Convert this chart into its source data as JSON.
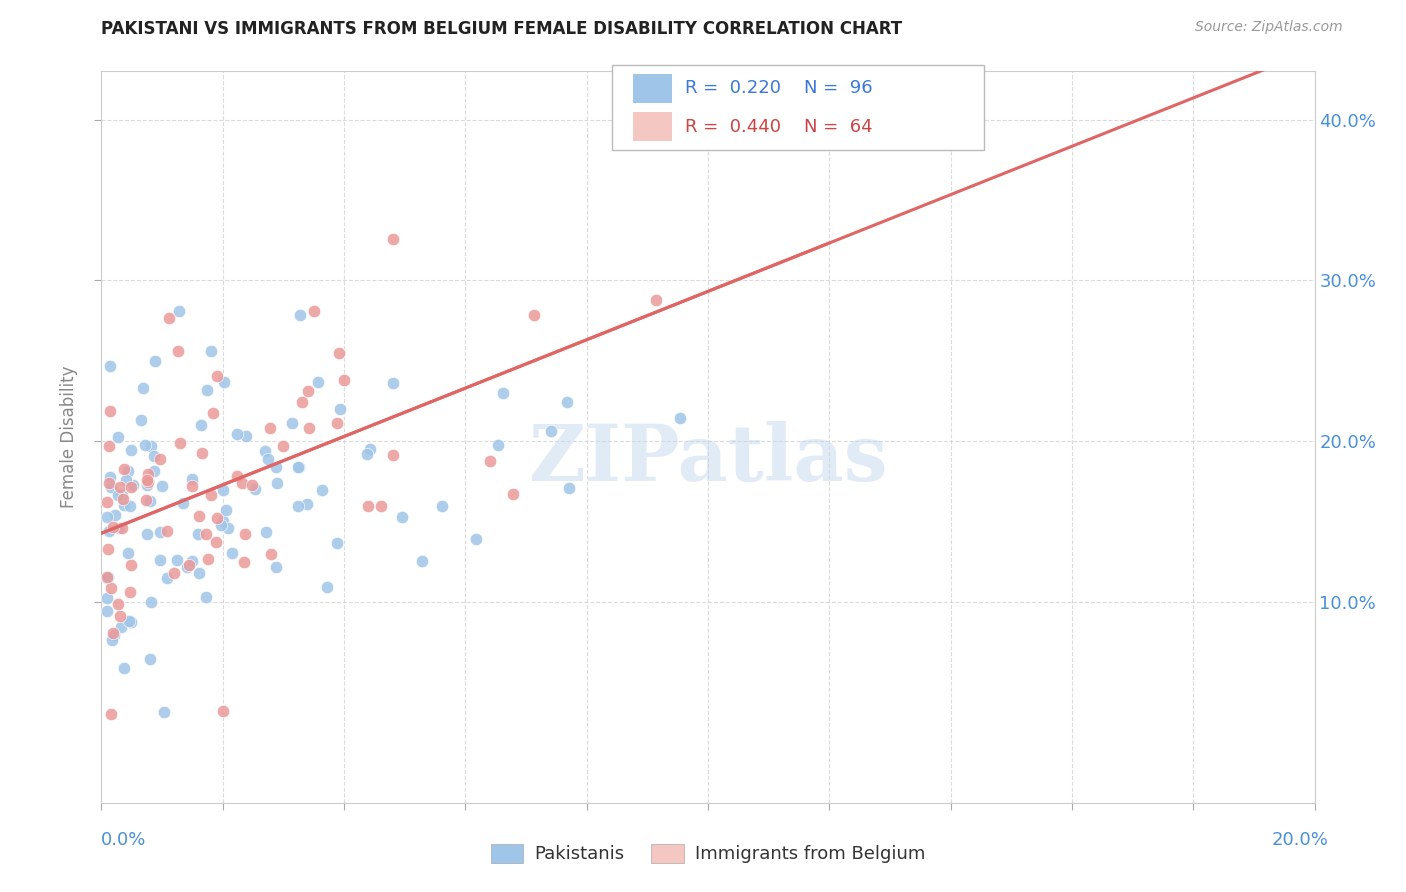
{
  "title": "PAKISTANI VS IMMIGRANTS FROM BELGIUM FEMALE DISABILITY CORRELATION CHART",
  "source": "Source: ZipAtlas.com",
  "ylabel": "Female Disability",
  "ytick_labels": [
    "10.0%",
    "20.0%",
    "30.0%",
    "40.0%"
  ],
  "ytick_vals": [
    0.1,
    0.2,
    0.3,
    0.4
  ],
  "xlim": [
    0.0,
    0.2
  ],
  "ylim": [
    -0.025,
    0.43
  ],
  "legend1_R": "0.220",
  "legend1_N": "96",
  "legend2_R": "0.440",
  "legend2_N": "64",
  "blue_color": "#9fc5e8",
  "pink_color": "#ea9999",
  "blue_line_color": "#3c78d8",
  "pink_line_color": "#e06666",
  "dashed_line_color": "#e8a0a0",
  "watermark": "ZIPatlas",
  "legend_label_1": "Pakistanis",
  "legend_label_2": "Immigrants from Belgium",
  "blue_legend_color": "#9fc5e8",
  "pink_legend_color": "#f4c7c3"
}
